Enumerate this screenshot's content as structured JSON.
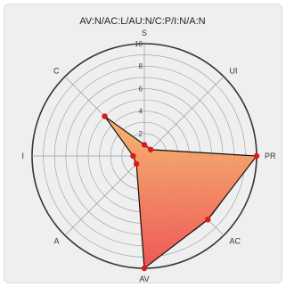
{
  "chart_data": {
    "type": "radar",
    "title": "AV:N/AC:L/AU:N/C:P/I:N/A:N",
    "axes": [
      "S",
      "UI",
      "PR",
      "AC",
      "AV",
      "A",
      "I",
      "C"
    ],
    "values": [
      1,
      0.8,
      10,
      8,
      10,
      1,
      1,
      5
    ],
    "rmax": 10,
    "tick_labels": [
      "2",
      "4",
      "6",
      "8",
      "10"
    ],
    "grid": true,
    "colors": {
      "fill_top": "#f6b56a",
      "fill_bottom": "#ee5050",
      "outline": "#111111",
      "point": "#e01818",
      "grid": "#9a9a9a",
      "outer_ring": "#333333"
    }
  }
}
